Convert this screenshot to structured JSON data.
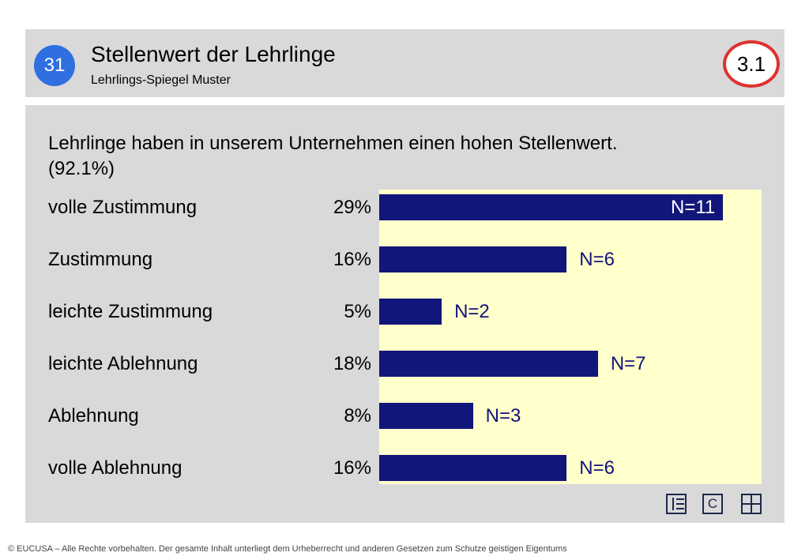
{
  "header": {
    "badge_number": "31",
    "title": "Stellenwert der Lehrlinge",
    "subtitle": "Lehrlings-Spiegel Muster",
    "section": "3.1"
  },
  "question": {
    "text": "Lehrlinge haben in unserem Unternehmen einen hohen Stellenwert.",
    "overall": "(92.1%)"
  },
  "chart_data": {
    "type": "bar",
    "orientation": "horizontal",
    "categories": [
      "volle Zustimmung",
      "Zustimmung",
      "leichte Zustimmung",
      "leichte Ablehnung",
      "Ablehnung",
      "volle Ablehnung"
    ],
    "percent_labels": [
      "29%",
      "16%",
      "5%",
      "18%",
      "8%",
      "16%"
    ],
    "values": [
      11,
      6,
      2,
      7,
      3,
      6
    ],
    "value_labels": [
      "N=11",
      "N=6",
      "N=2",
      "N=7",
      "N=3",
      "N=6"
    ],
    "xlim": [
      0,
      12
    ],
    "colors": {
      "bar": "#12157a",
      "plot_background": "#ffffcc"
    }
  },
  "icons": [
    "list-icon",
    "copyright-icon",
    "grid-icon"
  ],
  "icon_glyphs": {
    "copyright": "C"
  },
  "footer": "© EUCUSA – Alle Rechte vorbehalten. Der gesamte Inhalt unterliegt dem Urheberrecht und anderen Gesetzen zum Schutze geistigen Eigentums"
}
